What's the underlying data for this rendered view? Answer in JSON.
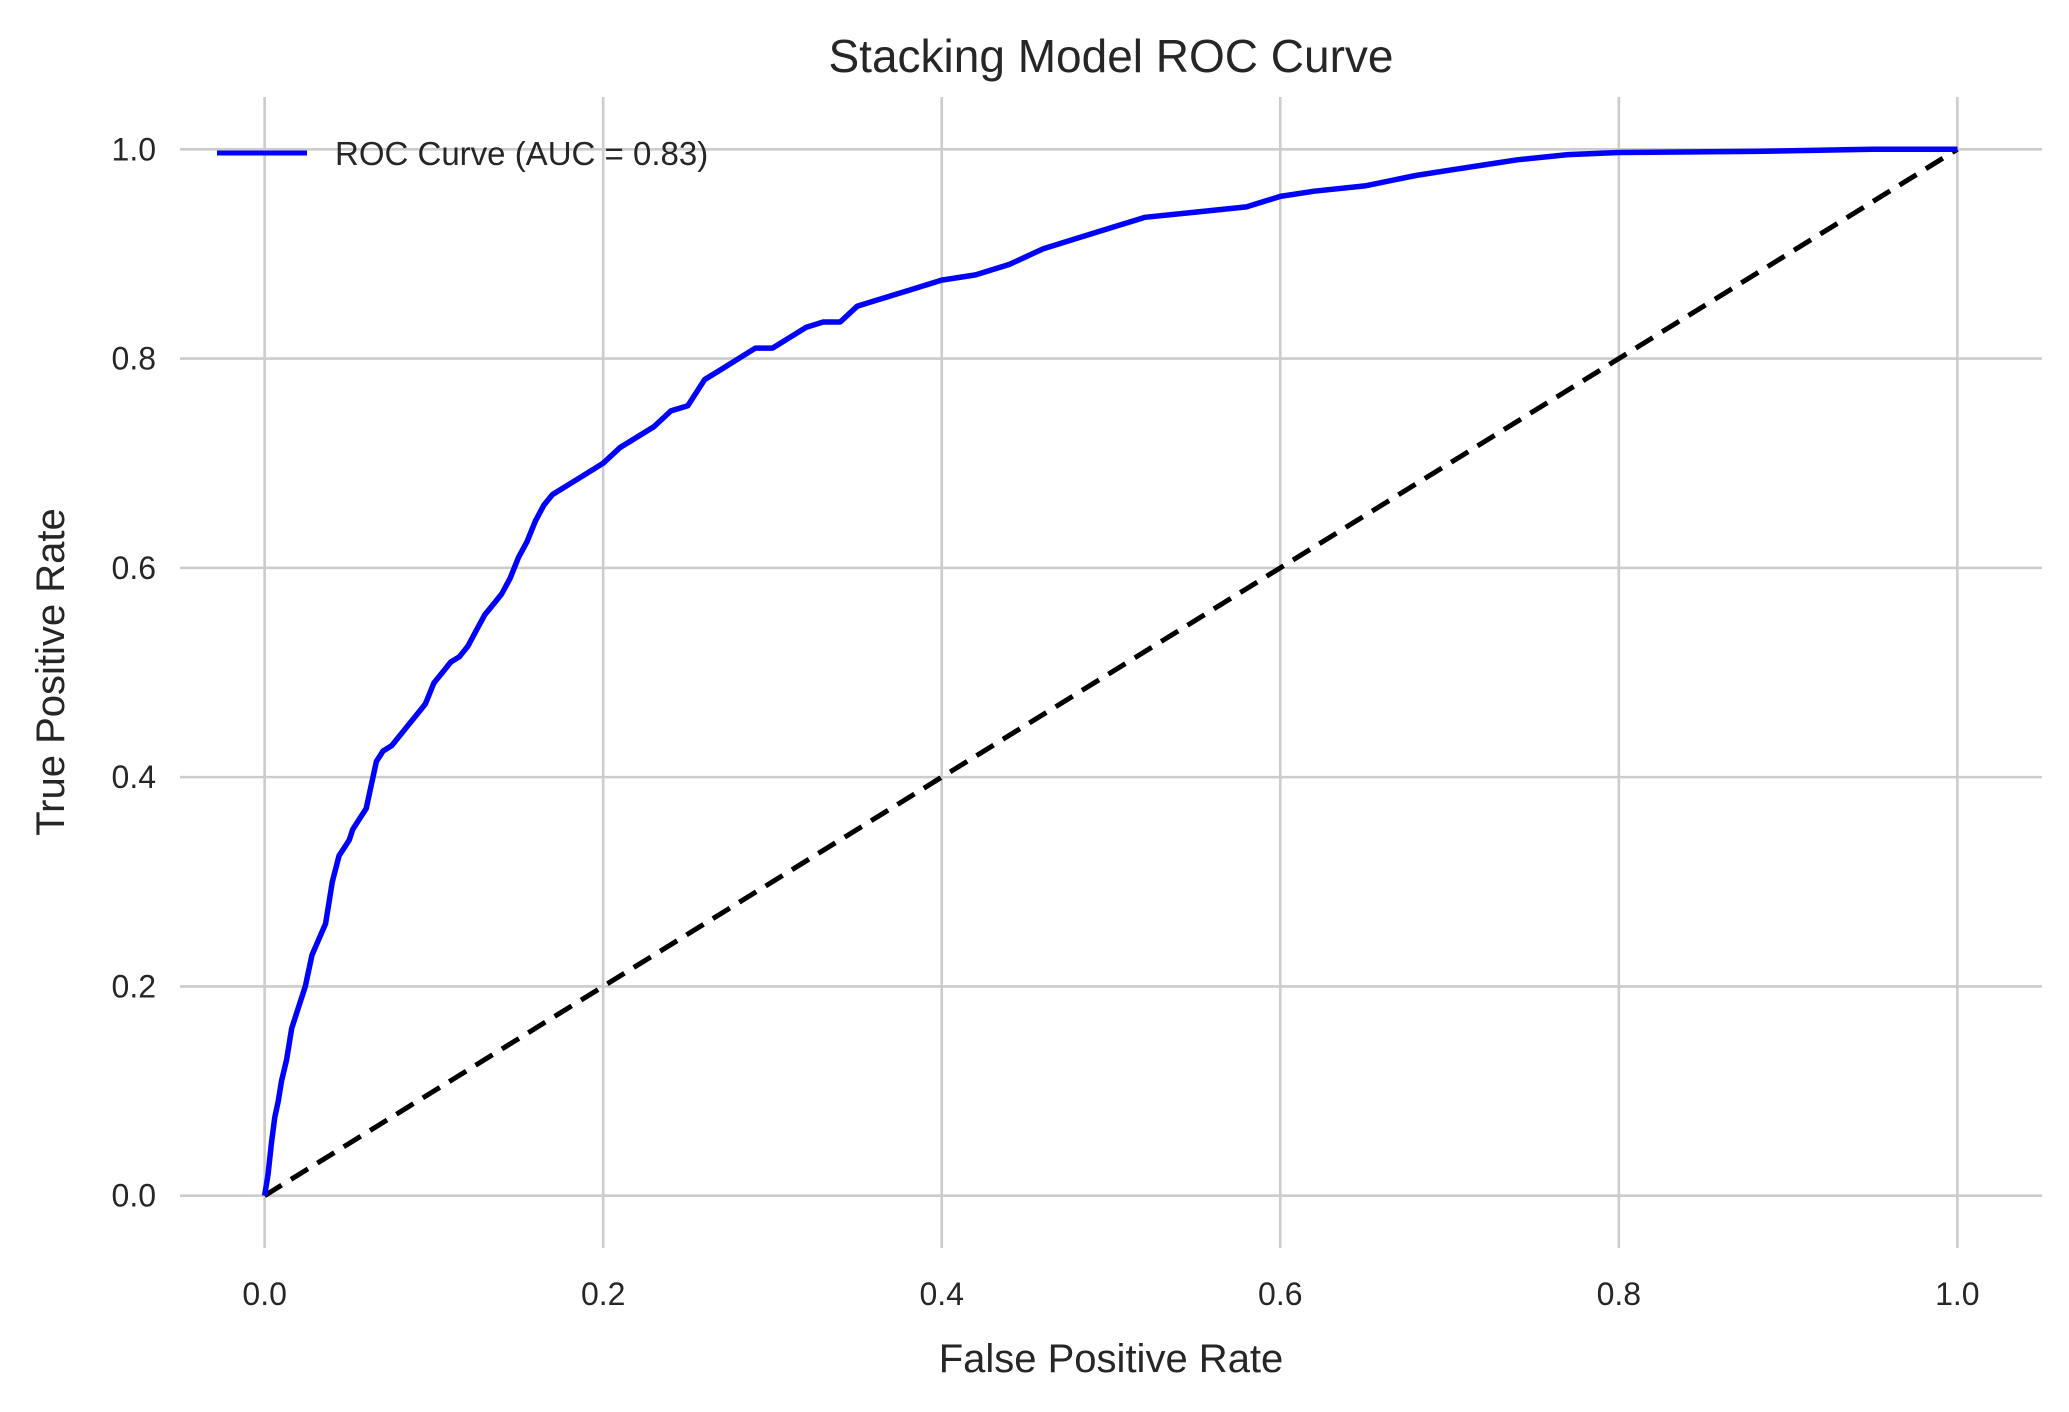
{
  "chart_data": {
    "type": "line",
    "title": "Stacking Model ROC Curve",
    "xlabel": "False Positive Rate",
    "ylabel": "True Positive Rate",
    "xlim": [
      -0.05,
      1.05
    ],
    "ylim": [
      -0.05,
      1.05
    ],
    "xticks": [
      "0.0",
      "0.2",
      "0.4",
      "0.6",
      "0.8",
      "1.0"
    ],
    "yticks": [
      "0.0",
      "0.2",
      "0.4",
      "0.6",
      "0.8",
      "1.0"
    ],
    "grid": true,
    "legend_position": "top-left",
    "series": [
      {
        "name": "ROC Curve (AUC = 0.83)",
        "color": "#0000ff",
        "style": "solid",
        "x": [
          0.0,
          0.002,
          0.004,
          0.006,
          0.008,
          0.01,
          0.013,
          0.016,
          0.02,
          0.024,
          0.028,
          0.032,
          0.036,
          0.04,
          0.044,
          0.048,
          0.05,
          0.052,
          0.056,
          0.06,
          0.064,
          0.066,
          0.07,
          0.075,
          0.08,
          0.085,
          0.09,
          0.095,
          0.1,
          0.105,
          0.11,
          0.115,
          0.12,
          0.125,
          0.13,
          0.135,
          0.14,
          0.145,
          0.15,
          0.155,
          0.16,
          0.165,
          0.17,
          0.175,
          0.18,
          0.19,
          0.2,
          0.21,
          0.22,
          0.23,
          0.24,
          0.25,
          0.26,
          0.27,
          0.28,
          0.29,
          0.3,
          0.31,
          0.32,
          0.33,
          0.34,
          0.35,
          0.36,
          0.38,
          0.4,
          0.42,
          0.44,
          0.46,
          0.48,
          0.5,
          0.52,
          0.55,
          0.58,
          0.6,
          0.62,
          0.65,
          0.68,
          0.7,
          0.72,
          0.74,
          0.77,
          0.8,
          0.88,
          0.95,
          1.0
        ],
        "y": [
          0.0,
          0.02,
          0.05,
          0.075,
          0.09,
          0.11,
          0.13,
          0.16,
          0.18,
          0.2,
          0.23,
          0.245,
          0.26,
          0.3,
          0.325,
          0.335,
          0.34,
          0.35,
          0.36,
          0.37,
          0.4,
          0.415,
          0.425,
          0.43,
          0.44,
          0.45,
          0.46,
          0.47,
          0.49,
          0.5,
          0.51,
          0.515,
          0.525,
          0.54,
          0.555,
          0.565,
          0.575,
          0.59,
          0.61,
          0.625,
          0.645,
          0.66,
          0.67,
          0.675,
          0.68,
          0.69,
          0.7,
          0.715,
          0.725,
          0.735,
          0.75,
          0.755,
          0.78,
          0.79,
          0.8,
          0.81,
          0.81,
          0.82,
          0.83,
          0.835,
          0.835,
          0.85,
          0.855,
          0.865,
          0.875,
          0.88,
          0.89,
          0.905,
          0.915,
          0.925,
          0.935,
          0.94,
          0.945,
          0.955,
          0.96,
          0.965,
          0.975,
          0.98,
          0.985,
          0.99,
          0.995,
          0.997,
          0.998,
          1.0,
          1.0
        ]
      },
      {
        "name": "",
        "color": "#000000",
        "style": "dashed",
        "x": [
          0.0,
          1.0
        ],
        "y": [
          0.0,
          1.0
        ]
      }
    ]
  }
}
